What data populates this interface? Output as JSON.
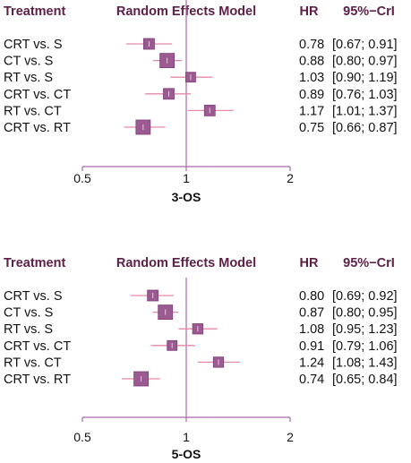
{
  "colors": {
    "header": "#5c1f45",
    "axis": "#a868a8",
    "box": "#9b5a92",
    "box_edge": "#7d3f75",
    "ci": "#e58aa8"
  },
  "chart_data": [
    {
      "type": "forest",
      "headers": {
        "treatment": "Treatment",
        "model": "Random Effects Model",
        "hr": "HR",
        "ci": "95%−CrI"
      },
      "xlabel": "3-OS",
      "x_scale": "log",
      "xlim": [
        0.5,
        2
      ],
      "ticks": [
        "0.5",
        "1",
        "2"
      ],
      "reference_line": 1,
      "rows": [
        {
          "label": "CRT vs. S",
          "hr": 0.78,
          "lower": 0.67,
          "upper": 0.91,
          "hr_text": "0.78",
          "ci_text": "[0.67; 0.91]",
          "weight": 0.6
        },
        {
          "label": "CT vs. S",
          "hr": 0.88,
          "lower": 0.8,
          "upper": 0.97,
          "hr_text": "0.88",
          "ci_text": "[0.80; 0.97]",
          "weight": 1.0
        },
        {
          "label": "RT vs. S",
          "hr": 1.03,
          "lower": 0.9,
          "upper": 1.19,
          "hr_text": "1.03",
          "ci_text": "[0.90; 1.19]",
          "weight": 0.5
        },
        {
          "label": "CRT vs. CT",
          "hr": 0.89,
          "lower": 0.76,
          "upper": 1.03,
          "hr_text": "0.89",
          "ci_text": "[0.76; 1.03]",
          "weight": 0.6
        },
        {
          "label": "RT vs. CT",
          "hr": 1.17,
          "lower": 1.01,
          "upper": 1.37,
          "hr_text": "1.17",
          "ci_text": "[1.01; 1.37]",
          "weight": 0.6
        },
        {
          "label": "CRT vs. RT",
          "hr": 0.75,
          "lower": 0.66,
          "upper": 0.87,
          "hr_text": "0.75",
          "ci_text": "[0.66; 0.87]",
          "weight": 1.0
        }
      ]
    },
    {
      "type": "forest",
      "headers": {
        "treatment": "Treatment",
        "model": "Random Effects Model",
        "hr": "HR",
        "ci": "95%−CrI"
      },
      "xlabel": "5-OS",
      "x_scale": "log",
      "xlim": [
        0.5,
        2
      ],
      "ticks": [
        "0.5",
        "1",
        "2"
      ],
      "reference_line": 1,
      "rows": [
        {
          "label": "CRT vs. S",
          "hr": 0.8,
          "lower": 0.69,
          "upper": 0.92,
          "hr_text": "0.80",
          "ci_text": "[0.69; 0.92]",
          "weight": 0.6
        },
        {
          "label": "CT vs. S",
          "hr": 0.87,
          "lower": 0.8,
          "upper": 0.95,
          "hr_text": "0.87",
          "ci_text": "[0.80; 0.95]",
          "weight": 1.0
        },
        {
          "label": "RT vs. S",
          "hr": 1.08,
          "lower": 0.95,
          "upper": 1.23,
          "hr_text": "1.08",
          "ci_text": "[0.95; 1.23]",
          "weight": 0.55
        },
        {
          "label": "CRT vs. CT",
          "hr": 0.91,
          "lower": 0.79,
          "upper": 1.06,
          "hr_text": "0.91",
          "ci_text": "[0.79; 1.06]",
          "weight": 0.5
        },
        {
          "label": "RT vs. CT",
          "hr": 1.24,
          "lower": 1.08,
          "upper": 1.43,
          "hr_text": "1.24",
          "ci_text": "[1.08; 1.43]",
          "weight": 0.55
        },
        {
          "label": "CRT vs. RT",
          "hr": 0.74,
          "lower": 0.65,
          "upper": 0.84,
          "hr_text": "0.74",
          "ci_text": "[0.65; 0.84]",
          "weight": 1.0
        }
      ]
    }
  ]
}
